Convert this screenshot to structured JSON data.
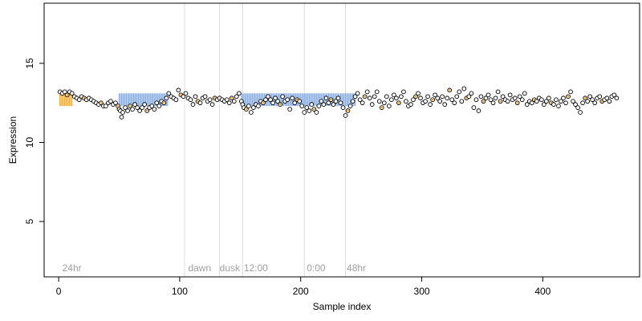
{
  "chart_data": {
    "type": "scatter",
    "xlabel": "Sample index",
    "ylabel": "Expression",
    "xlim": [
      -12,
      480
    ],
    "ylim": [
      1.5,
      18.8
    ],
    "x_ticks": [
      0,
      100,
      200,
      300,
      400
    ],
    "y_ticks": [
      5,
      10,
      15
    ],
    "phase_boundaries": [
      104,
      133,
      152,
      203,
      237
    ],
    "phase_labels": [
      {
        "x": 3,
        "text": "24hr"
      },
      {
        "x": 107,
        "text": "dawn"
      },
      {
        "x": 133,
        "text": "dusk"
      },
      {
        "x": 153,
        "text": "12:00"
      },
      {
        "x": 205,
        "text": "0:00"
      },
      {
        "x": 238,
        "text": "48hr"
      }
    ],
    "colors": {
      "orange": "#f5a623",
      "blue": "#7ea6e0",
      "point_fill": "#ffffff",
      "point_stroke": "#000000",
      "phase_line": "#dcdcdc",
      "phase_text": "#a0a0a0"
    },
    "bars": {
      "baseline": 12.7,
      "note_segments": [
        {
          "start": 1,
          "end": 11,
          "color": "orange"
        },
        {
          "start": 12,
          "end": 49,
          "color": "none"
        },
        {
          "start": 50,
          "end": 90,
          "color": "blue"
        },
        {
          "start": 91,
          "end": 103,
          "color": "orange"
        },
        {
          "start": 104,
          "end": 150,
          "color": "orange"
        },
        {
          "start": 151,
          "end": 200,
          "color": "blue"
        },
        {
          "start": 201,
          "end": 245,
          "color": "blue"
        },
        {
          "start": 246,
          "end": 462,
          "color": "orange"
        }
      ]
    },
    "points": [
      [
        1,
        13.2
      ],
      [
        3,
        13.1
      ],
      [
        5,
        13.2
      ],
      [
        7,
        13.0
      ],
      [
        9,
        13.2
      ],
      [
        11,
        13.1
      ],
      [
        13,
        12.9
      ],
      [
        15,
        12.8
      ],
      [
        17,
        12.7
      ],
      [
        19,
        12.9
      ],
      [
        21,
        12.8
      ],
      [
        23,
        12.7
      ],
      [
        25,
        12.8
      ],
      [
        27,
        12.7
      ],
      [
        29,
        12.6
      ],
      [
        31,
        12.5
      ],
      [
        33,
        12.4
      ],
      [
        35,
        12.5
      ],
      [
        37,
        12.3
      ],
      [
        39,
        12.3
      ],
      [
        41,
        12.5
      ],
      [
        43,
        12.6
      ],
      [
        45,
        12.4
      ],
      [
        47,
        12.5
      ],
      [
        49,
        12.3
      ],
      [
        50,
        12.1
      ],
      [
        51,
        12.0
      ],
      [
        52,
        11.6
      ],
      [
        53,
        11.9
      ],
      [
        55,
        12.2
      ],
      [
        57,
        12.0
      ],
      [
        59,
        12.3
      ],
      [
        61,
        12.1
      ],
      [
        63,
        12.4
      ],
      [
        65,
        12.2
      ],
      [
        67,
        12.0
      ],
      [
        69,
        12.2
      ],
      [
        71,
        12.4
      ],
      [
        73,
        12.0
      ],
      [
        75,
        12.2
      ],
      [
        77,
        12.3
      ],
      [
        79,
        12.1
      ],
      [
        81,
        12.5
      ],
      [
        83,
        12.3
      ],
      [
        85,
        12.6
      ],
      [
        87,
        12.5
      ],
      [
        89,
        12.8
      ],
      [
        91,
        13.1
      ],
      [
        93,
        12.9
      ],
      [
        95,
        12.8
      ],
      [
        97,
        12.7
      ],
      [
        99,
        13.3
      ],
      [
        101,
        13.0
      ],
      [
        103,
        12.9
      ],
      [
        105,
        13.1
      ],
      [
        107,
        12.8
      ],
      [
        109,
        12.7
      ],
      [
        111,
        12.4
      ],
      [
        113,
        12.9
      ],
      [
        115,
        12.6
      ],
      [
        117,
        12.5
      ],
      [
        119,
        12.8
      ],
      [
        121,
        12.9
      ],
      [
        123,
        12.6
      ],
      [
        125,
        12.7
      ],
      [
        127,
        12.4
      ],
      [
        129,
        12.8
      ],
      [
        131,
        12.7
      ],
      [
        133,
        12.8
      ],
      [
        135,
        12.7
      ],
      [
        137,
        12.6
      ],
      [
        139,
        12.7
      ],
      [
        141,
        12.5
      ],
      [
        143,
        12.8
      ],
      [
        145,
        12.6
      ],
      [
        147,
        12.9
      ],
      [
        149,
        13.1
      ],
      [
        151,
        12.6
      ],
      [
        152,
        12.4
      ],
      [
        153,
        12.2
      ],
      [
        155,
        12.1
      ],
      [
        157,
        12.3
      ],
      [
        159,
        11.9
      ],
      [
        161,
        12.2
      ],
      [
        163,
        12.4
      ],
      [
        165,
        12.3
      ],
      [
        167,
        12.6
      ],
      [
        169,
        12.5
      ],
      [
        171,
        12.7
      ],
      [
        173,
        12.9
      ],
      [
        175,
        12.7
      ],
      [
        177,
        12.5
      ],
      [
        179,
        12.8
      ],
      [
        181,
        12.6
      ],
      [
        183,
        12.4
      ],
      [
        185,
        12.9
      ],
      [
        187,
        12.6
      ],
      [
        189,
        12.7
      ],
      [
        191,
        12.1
      ],
      [
        193,
        12.8
      ],
      [
        195,
        12.5
      ],
      [
        197,
        12.7
      ],
      [
        199,
        12.6
      ],
      [
        201,
        12.3
      ],
      [
        203,
        11.9
      ],
      [
        205,
        12.2
      ],
      [
        207,
        12.0
      ],
      [
        209,
        12.4
      ],
      [
        211,
        12.1
      ],
      [
        213,
        11.9
      ],
      [
        215,
        12.3
      ],
      [
        217,
        12.6
      ],
      [
        219,
        12.4
      ],
      [
        221,
        12.8
      ],
      [
        223,
        12.5
      ],
      [
        225,
        12.7
      ],
      [
        227,
        12.4
      ],
      [
        229,
        12.6
      ],
      [
        231,
        12.8
      ],
      [
        233,
        12.5
      ],
      [
        235,
        12.2
      ],
      [
        237,
        11.7
      ],
      [
        239,
        12.0
      ],
      [
        241,
        12.3
      ],
      [
        243,
        12.6
      ],
      [
        245,
        12.9
      ],
      [
        247,
        13.1
      ],
      [
        249,
        12.7
      ],
      [
        251,
        12.5
      ],
      [
        253,
        12.9
      ],
      [
        255,
        13.2
      ],
      [
        257,
        12.8
      ],
      [
        259,
        12.4
      ],
      [
        261,
        12.9
      ],
      [
        263,
        13.2
      ],
      [
        265,
        12.6
      ],
      [
        267,
        12.2
      ],
      [
        269,
        12.5
      ],
      [
        271,
        12.9
      ],
      [
        273,
        12.3
      ],
      [
        275,
        12.7
      ],
      [
        277,
        13.0
      ],
      [
        279,
        12.8
      ],
      [
        281,
        12.5
      ],
      [
        283,
        12.9
      ],
      [
        285,
        13.2
      ],
      [
        287,
        12.6
      ],
      [
        289,
        12.3
      ],
      [
        291,
        12.4
      ],
      [
        293,
        12.7
      ],
      [
        295,
        12.9
      ],
      [
        297,
        13.1
      ],
      [
        299,
        12.8
      ],
      [
        301,
        12.5
      ],
      [
        303,
        12.6
      ],
      [
        305,
        12.9
      ],
      [
        307,
        12.4
      ],
      [
        309,
        12.7
      ],
      [
        311,
        13.0
      ],
      [
        313,
        12.8
      ],
      [
        315,
        12.6
      ],
      [
        317,
        12.9
      ],
      [
        319,
        12.4
      ],
      [
        321,
        12.8
      ],
      [
        323,
        13.3
      ],
      [
        325,
        12.7
      ],
      [
        327,
        12.5
      ],
      [
        329,
        12.9
      ],
      [
        331,
        13.2
      ],
      [
        333,
        12.6
      ],
      [
        335,
        13.4
      ],
      [
        337,
        12.8
      ],
      [
        339,
        12.9
      ],
      [
        341,
        13.1
      ],
      [
        343,
        12.2
      ],
      [
        345,
        12.7
      ],
      [
        347,
        12.0
      ],
      [
        349,
        12.9
      ],
      [
        351,
        12.6
      ],
      [
        353,
        12.8
      ],
      [
        355,
        13.0
      ],
      [
        357,
        12.7
      ],
      [
        359,
        12.5
      ],
      [
        361,
        12.8
      ],
      [
        363,
        13.2
      ],
      [
        365,
        12.6
      ],
      [
        367,
        12.9
      ],
      [
        369,
        12.7
      ],
      [
        371,
        12.6
      ],
      [
        373,
        13.0
      ],
      [
        375,
        12.7
      ],
      [
        377,
        12.8
      ],
      [
        379,
        12.5
      ],
      [
        381,
        12.9
      ],
      [
        383,
        12.7
      ],
      [
        385,
        13.1
      ],
      [
        387,
        12.4
      ],
      [
        389,
        12.6
      ],
      [
        391,
        12.5
      ],
      [
        393,
        12.7
      ],
      [
        395,
        12.6
      ],
      [
        397,
        12.8
      ],
      [
        399,
        12.7
      ],
      [
        401,
        12.4
      ],
      [
        403,
        12.6
      ],
      [
        405,
        12.8
      ],
      [
        407,
        12.5
      ],
      [
        409,
        12.4
      ],
      [
        411,
        12.7
      ],
      [
        413,
        12.3
      ],
      [
        415,
        12.6
      ],
      [
        417,
        12.8
      ],
      [
        419,
        12.5
      ],
      [
        421,
        12.9
      ],
      [
        423,
        13.2
      ],
      [
        425,
        12.6
      ],
      [
        427,
        12.4
      ],
      [
        429,
        12.2
      ],
      [
        431,
        11.9
      ],
      [
        433,
        12.5
      ],
      [
        435,
        12.8
      ],
      [
        437,
        12.6
      ],
      [
        439,
        12.9
      ],
      [
        441,
        12.7
      ],
      [
        443,
        12.5
      ],
      [
        445,
        12.8
      ],
      [
        447,
        12.9
      ],
      [
        449,
        12.6
      ],
      [
        451,
        12.7
      ],
      [
        453,
        12.8
      ],
      [
        455,
        12.6
      ],
      [
        457,
        12.9
      ],
      [
        459,
        13.0
      ],
      [
        461,
        12.8
      ]
    ]
  }
}
